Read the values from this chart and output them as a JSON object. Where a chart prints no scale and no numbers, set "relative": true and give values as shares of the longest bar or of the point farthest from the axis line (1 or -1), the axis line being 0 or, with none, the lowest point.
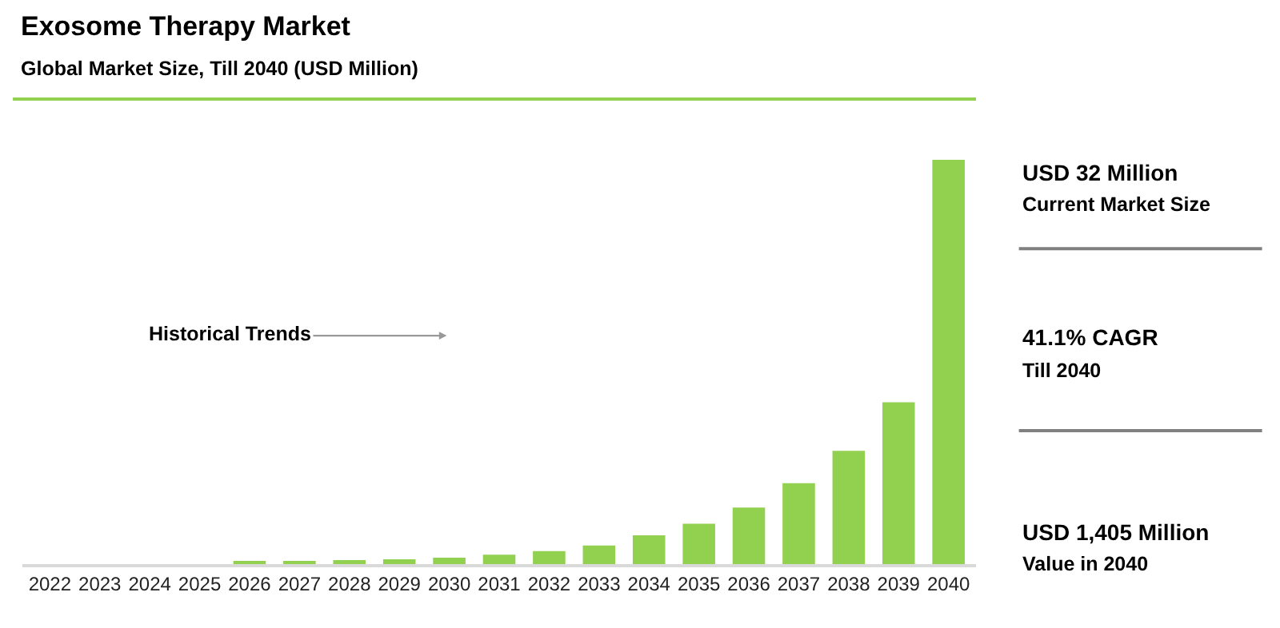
{
  "chart_data": {
    "type": "bar",
    "title": "Exosome Therapy Market",
    "subtitle": "Global Market Size, Till 2040 (USD Million)",
    "categories": [
      "2022",
      "2023",
      "2024",
      "2025",
      "2026",
      "2027",
      "2028",
      "2029",
      "2030",
      "2031",
      "2032",
      "2033",
      "2034",
      "2035",
      "2036",
      "2037",
      "2038",
      "2039",
      "2040"
    ],
    "values": [
      0,
      0,
      0,
      0,
      0.005,
      0.006,
      0.01,
      0.012,
      0.016,
      0.023,
      0.032,
      0.046,
      0.071,
      0.1,
      0.14,
      0.2,
      0.28,
      0.4,
      1
    ],
    "color": "#92d050",
    "relative": true,
    "legend": false,
    "annotations": [
      "Historical Trends",
      "USD 32 Million",
      "Current Market Size",
      "41.1% CAGR",
      "Till 2040",
      "USD 1,405 Million",
      "Value in 2040"
    ]
  }
}
